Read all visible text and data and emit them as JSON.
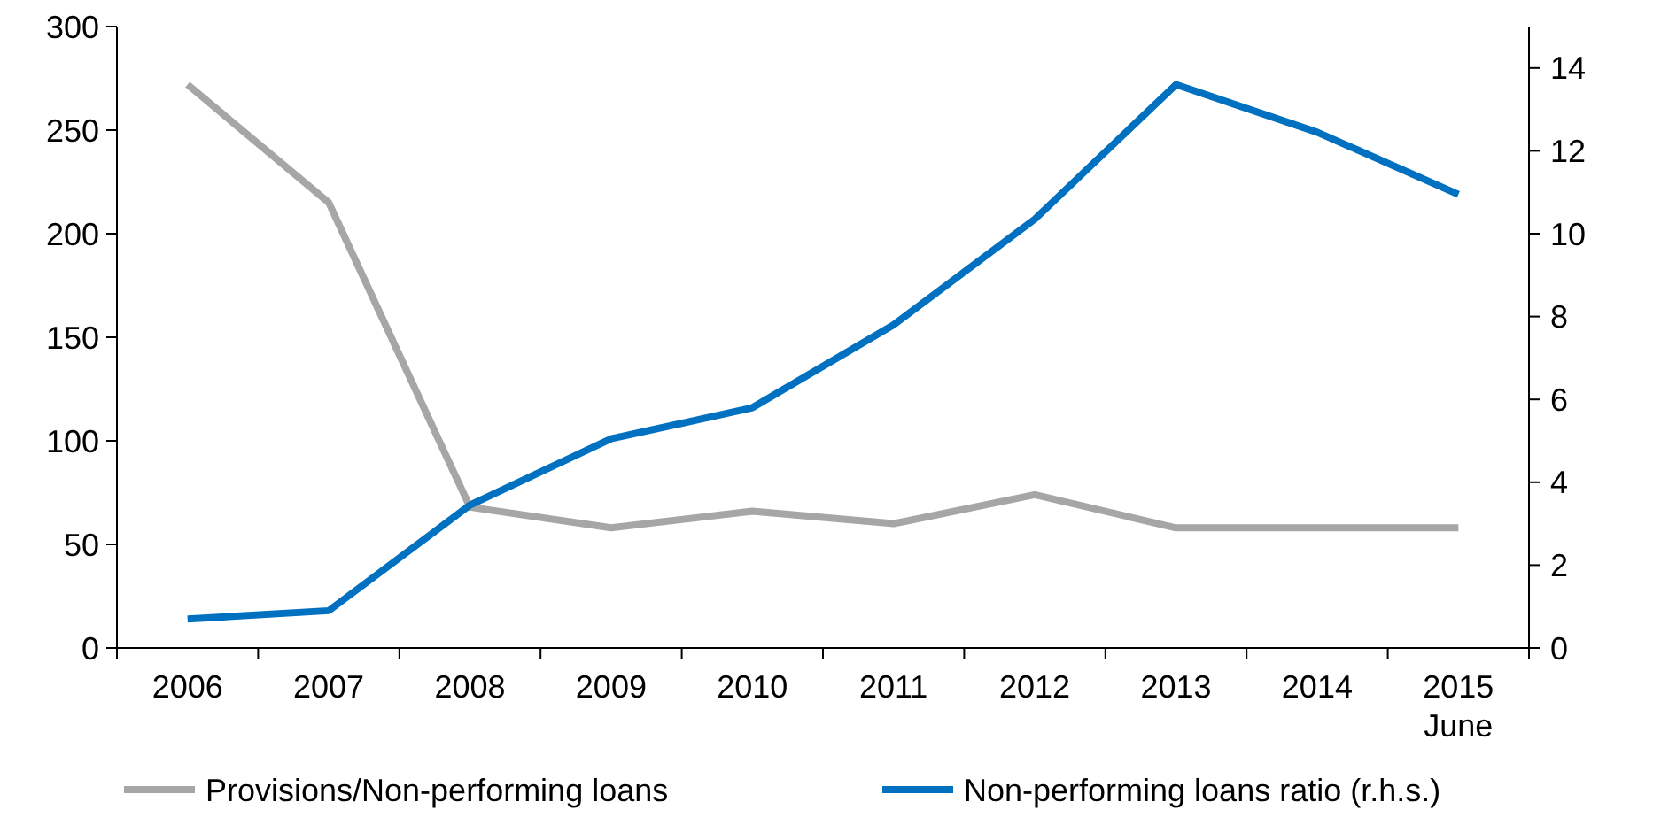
{
  "chart_data": {
    "type": "line",
    "categories": [
      "2006",
      "2007",
      "2008",
      "2009",
      "2010",
      "2011",
      "2012",
      "2013",
      "2014",
      "2015\nJune"
    ],
    "series": [
      {
        "name": "Provisions/Non-performing loans",
        "color": "#a6a6a6",
        "values": [
          272,
          215,
          68,
          58,
          66,
          60,
          74,
          58,
          58,
          58
        ]
      },
      {
        "name": "Non-performing loans ratio (r.h.s.)",
        "color": "#0070c0",
        "axis": "y2",
        "values": [
          0.7,
          0.9,
          3.45,
          5.05,
          5.8,
          7.8,
          10.35,
          13.6,
          12.45,
          10.95
        ]
      }
    ],
    "ylim": [
      0,
      300
    ],
    "yticks": [
      0,
      50,
      100,
      150,
      200,
      250,
      300
    ],
    "y2lim": [
      0,
      15
    ],
    "y2ticks": [
      0,
      2,
      4,
      6,
      8,
      10,
      12,
      14
    ],
    "grid": false,
    "legend": "bottom",
    "marker": "none",
    "line_style": "solid"
  }
}
